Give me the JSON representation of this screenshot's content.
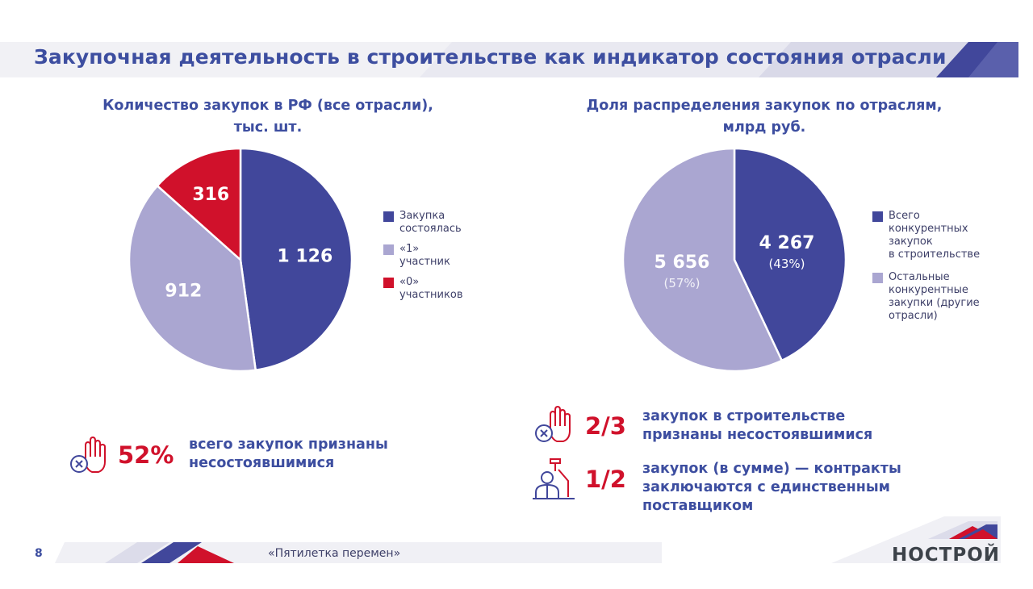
{
  "header": {
    "title": "Закупочная деятельность в строительстве как индикатор состояния отрасли"
  },
  "colors": {
    "navy": "#41479b",
    "lavender": "#a8a3cf",
    "red": "#d0112b",
    "title": "#3d4ea0"
  },
  "chart_data": [
    {
      "type": "pie",
      "title_lines": [
        "Количество закупок в РФ (все отрасли),",
        "тыс. шт."
      ],
      "slices": [
        {
          "label": "Закупка состоялась",
          "value": 1126,
          "display": "1 126",
          "color": "#41479b"
        },
        {
          "label": "«1» участник",
          "value": 912,
          "display": "912",
          "color": "#aaa6d1"
        },
        {
          "label": "«0» участников",
          "value": 316,
          "display": "316",
          "color": "#d0112b"
        }
      ],
      "legend": [
        {
          "lines": [
            "Закупка",
            "состоялась"
          ],
          "color": "#41479b"
        },
        {
          "lines": [
            "«1»",
            "участник"
          ],
          "color": "#aaa6d1"
        },
        {
          "lines": [
            "«0»",
            "участников"
          ],
          "color": "#d0112b"
        }
      ]
    },
    {
      "type": "pie",
      "title_lines": [
        "Доля распределения закупок по отраслям,",
        "млрд руб."
      ],
      "slices": [
        {
          "label": "Всего конкурентных закупок в строительстве",
          "value": 4267,
          "display": "4 267",
          "share": "(43%)",
          "color": "#41479b"
        },
        {
          "label": "Остальные конкурентные закупки (другие отрасли)",
          "value": 5656,
          "display": "5 656",
          "share": "(57%)",
          "color": "#aaa6d1"
        }
      ],
      "legend": [
        {
          "lines": [
            "Всего",
            "конкурентных",
            "закупок",
            "в строительстве"
          ],
          "color": "#41479b"
        },
        {
          "lines": [
            "Остальные",
            "конкурентные",
            "закупки (другие",
            "отрасли)"
          ],
          "color": "#aaa6d1"
        }
      ]
    }
  ],
  "stats": {
    "left": {
      "value": "52%",
      "lines": [
        "всего закупок признаны",
        "несостоявшимися"
      ],
      "icon": "hand-stop-icon"
    },
    "right_1": {
      "value": "2/3",
      "lines": [
        "закупок в строительстве",
        "признаны несостоявшимися"
      ],
      "icon": "hand-stop-icon"
    },
    "right_2": {
      "value": "1/2",
      "lines": [
        "закупок (в сумме) — контракты",
        "заключаются с единственным",
        "поставщиком"
      ],
      "icon": "worker-icon"
    }
  },
  "footer": {
    "page": "8",
    "tagline": "«Пятилетка перемен»",
    "logo": "НОСТРОЙ"
  }
}
